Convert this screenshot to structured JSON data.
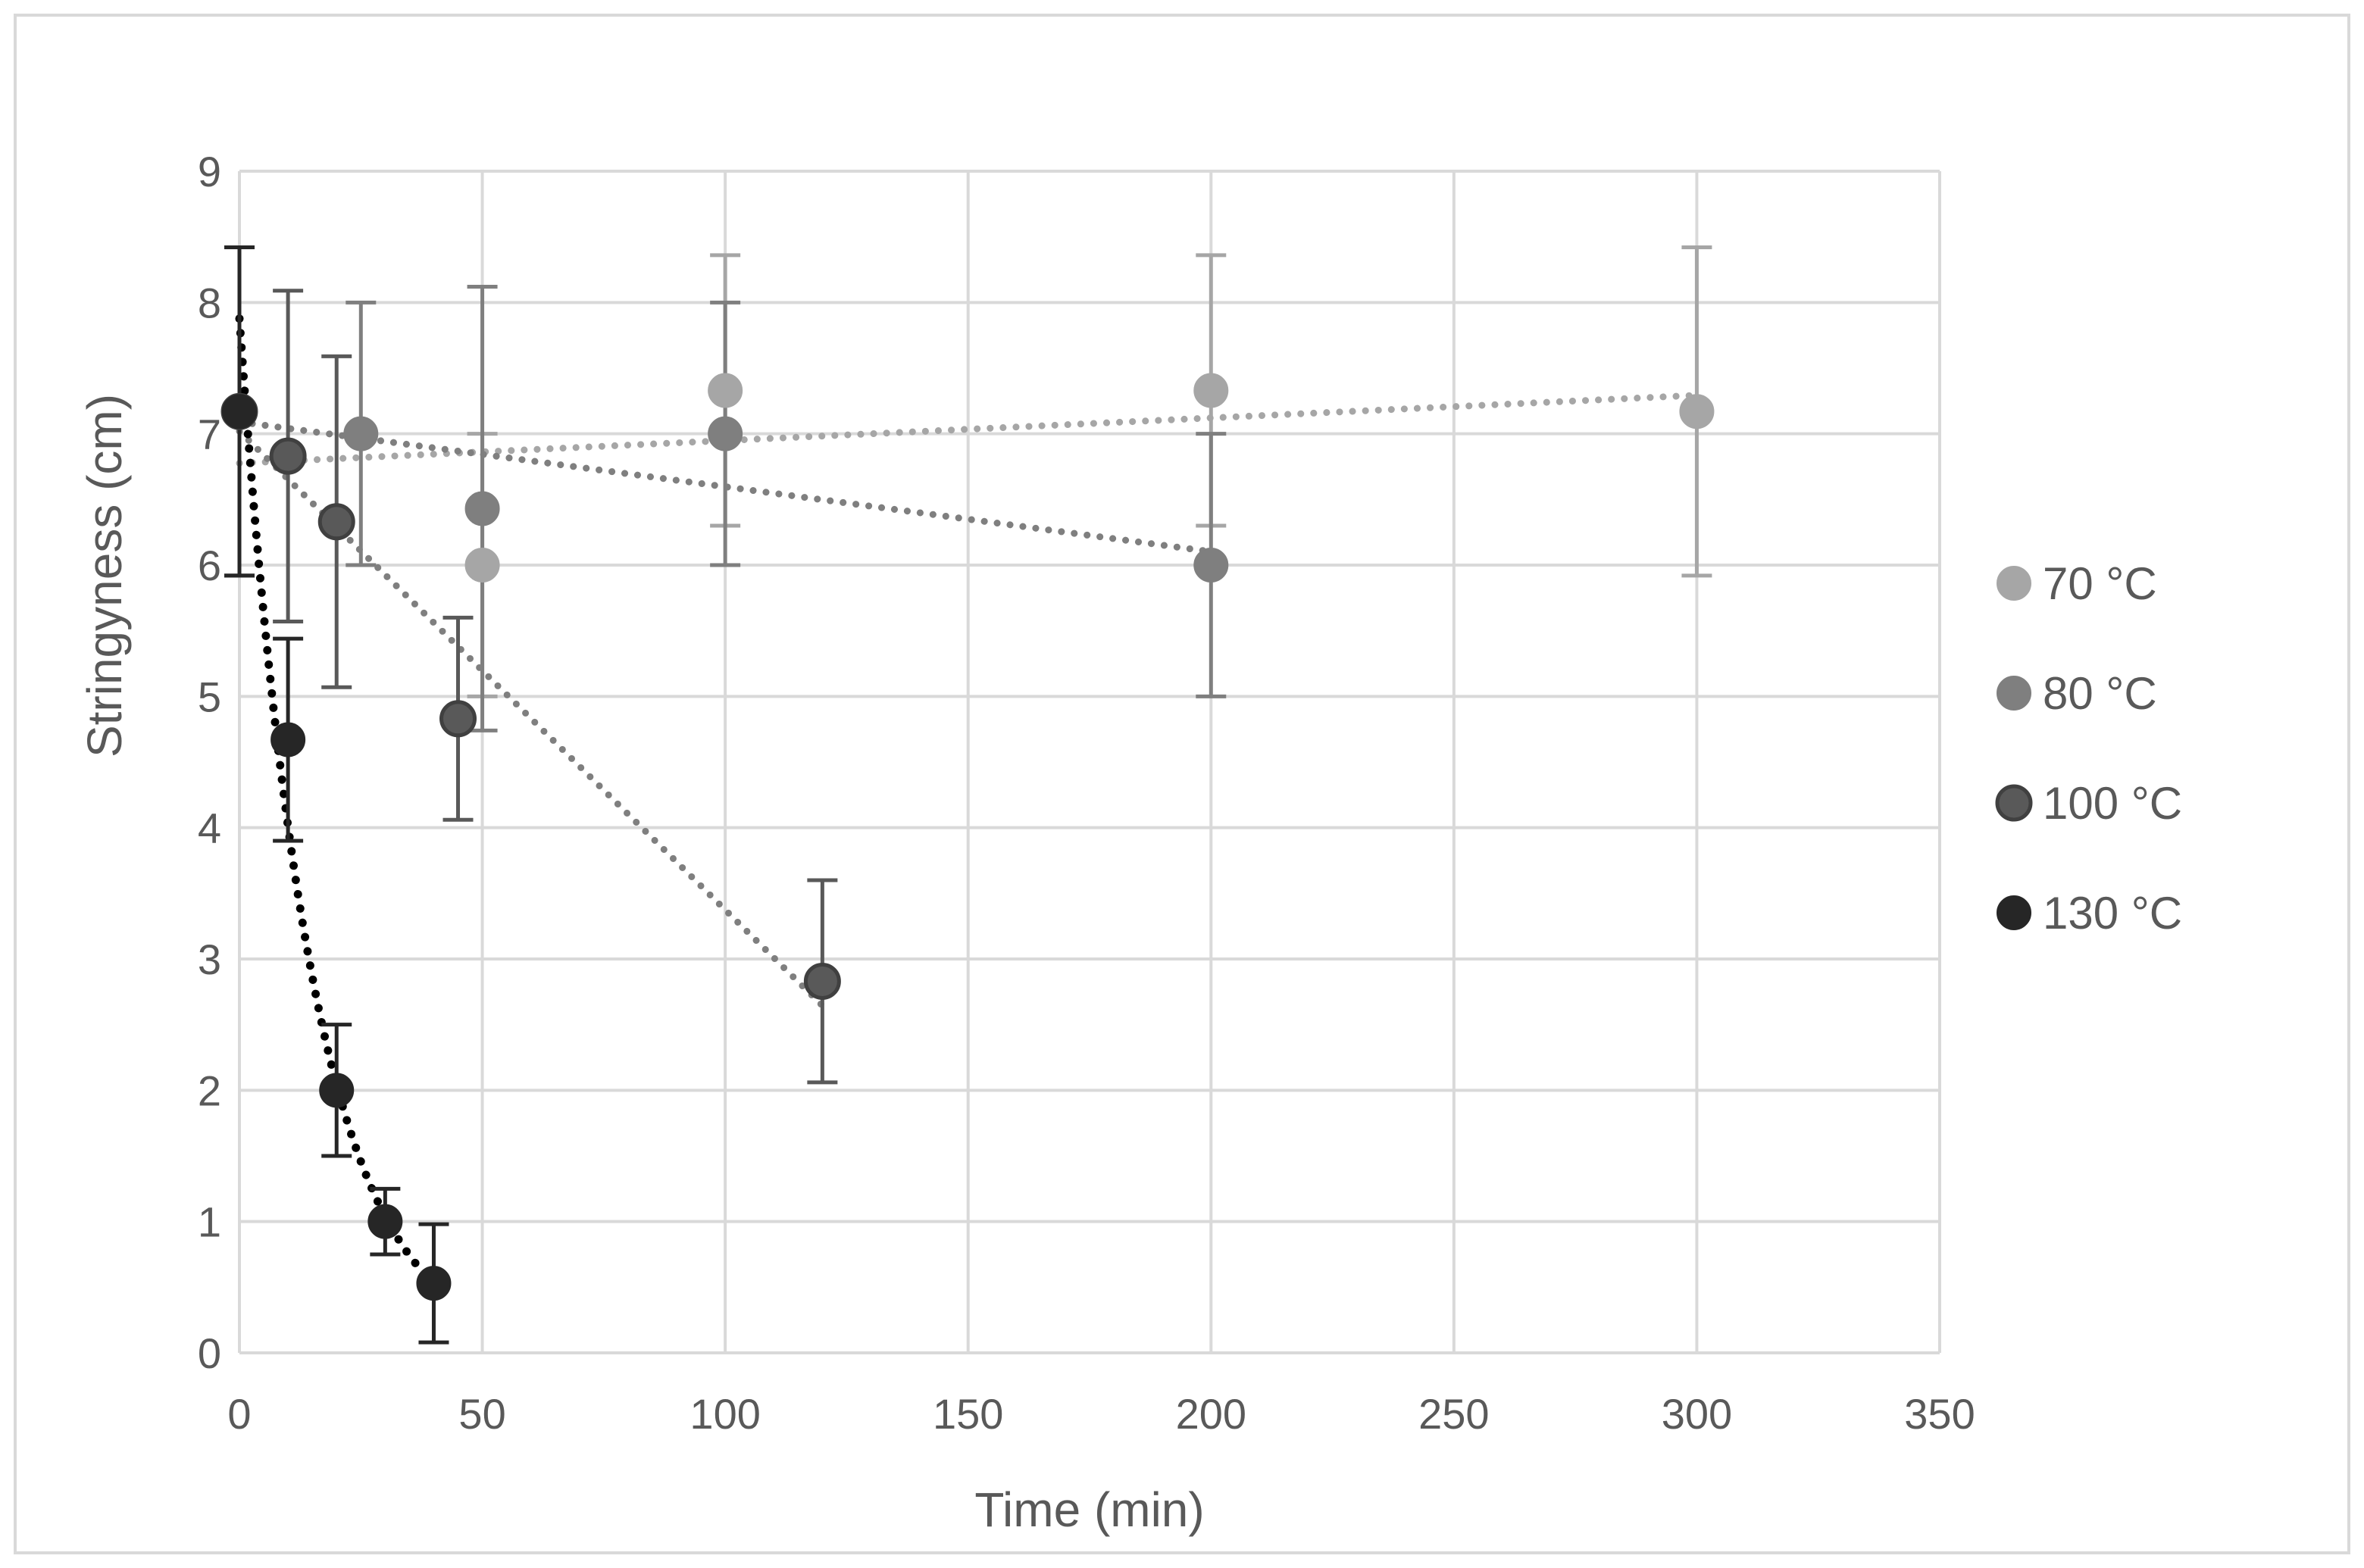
{
  "chart_data": {
    "type": "scatter",
    "title": "",
    "xlabel": "Time (min)",
    "ylabel": "Stringyness (cm)",
    "xlim": [
      0,
      350
    ],
    "ylim": [
      0,
      9
    ],
    "xticks": [
      0,
      50,
      100,
      150,
      200,
      250,
      300,
      350
    ],
    "yticks": [
      0,
      1,
      2,
      3,
      4,
      5,
      6,
      7,
      8,
      9
    ],
    "grid": true,
    "legend_position": "right",
    "series": [
      {
        "name": "70 °C",
        "color": "#a6a6a6",
        "trendline": "linear",
        "points": [
          {
            "x": 0,
            "y": 7.17,
            "err": 1.25
          },
          {
            "x": 50,
            "y": 6.0,
            "err": 1.0
          },
          {
            "x": 100,
            "y": 7.33,
            "err": 1.03
          },
          {
            "x": 200,
            "y": 7.33,
            "err": 1.03
          },
          {
            "x": 300,
            "y": 7.17,
            "err": 1.25
          }
        ]
      },
      {
        "name": "80 °C",
        "color": "#7f7f7f",
        "trendline": "linear",
        "points": [
          {
            "x": 0,
            "y": 7.17,
            "err": 1.25
          },
          {
            "x": 25,
            "y": 7.0,
            "err": 1.0
          },
          {
            "x": 50,
            "y": 6.43,
            "err": 1.69
          },
          {
            "x": 100,
            "y": 7.0,
            "err": 1.0
          },
          {
            "x": 200,
            "y": 6.0,
            "err": 1.0
          }
        ]
      },
      {
        "name": "100 °C",
        "color": "#595959",
        "trendline": "linear",
        "points": [
          {
            "x": 0,
            "y": 7.17,
            "err": 1.25
          },
          {
            "x": 10,
            "y": 6.83,
            "err": 1.26
          },
          {
            "x": 20,
            "y": 6.33,
            "err": 1.26
          },
          {
            "x": 45,
            "y": 4.83,
            "err": 0.77
          },
          {
            "x": 120,
            "y": 2.83,
            "err": 0.77
          }
        ]
      },
      {
        "name": "130 °C",
        "color": "#262626",
        "trendline": "exponential",
        "points": [
          {
            "x": 0,
            "y": 7.17,
            "err": 1.25
          },
          {
            "x": 10,
            "y": 4.67,
            "err": 0.77
          },
          {
            "x": 20,
            "y": 2.0,
            "err": 0.5
          },
          {
            "x": 30,
            "y": 1.0,
            "err": 0.25
          },
          {
            "x": 40,
            "y": 0.53,
            "err": 0.45
          }
        ]
      }
    ]
  }
}
